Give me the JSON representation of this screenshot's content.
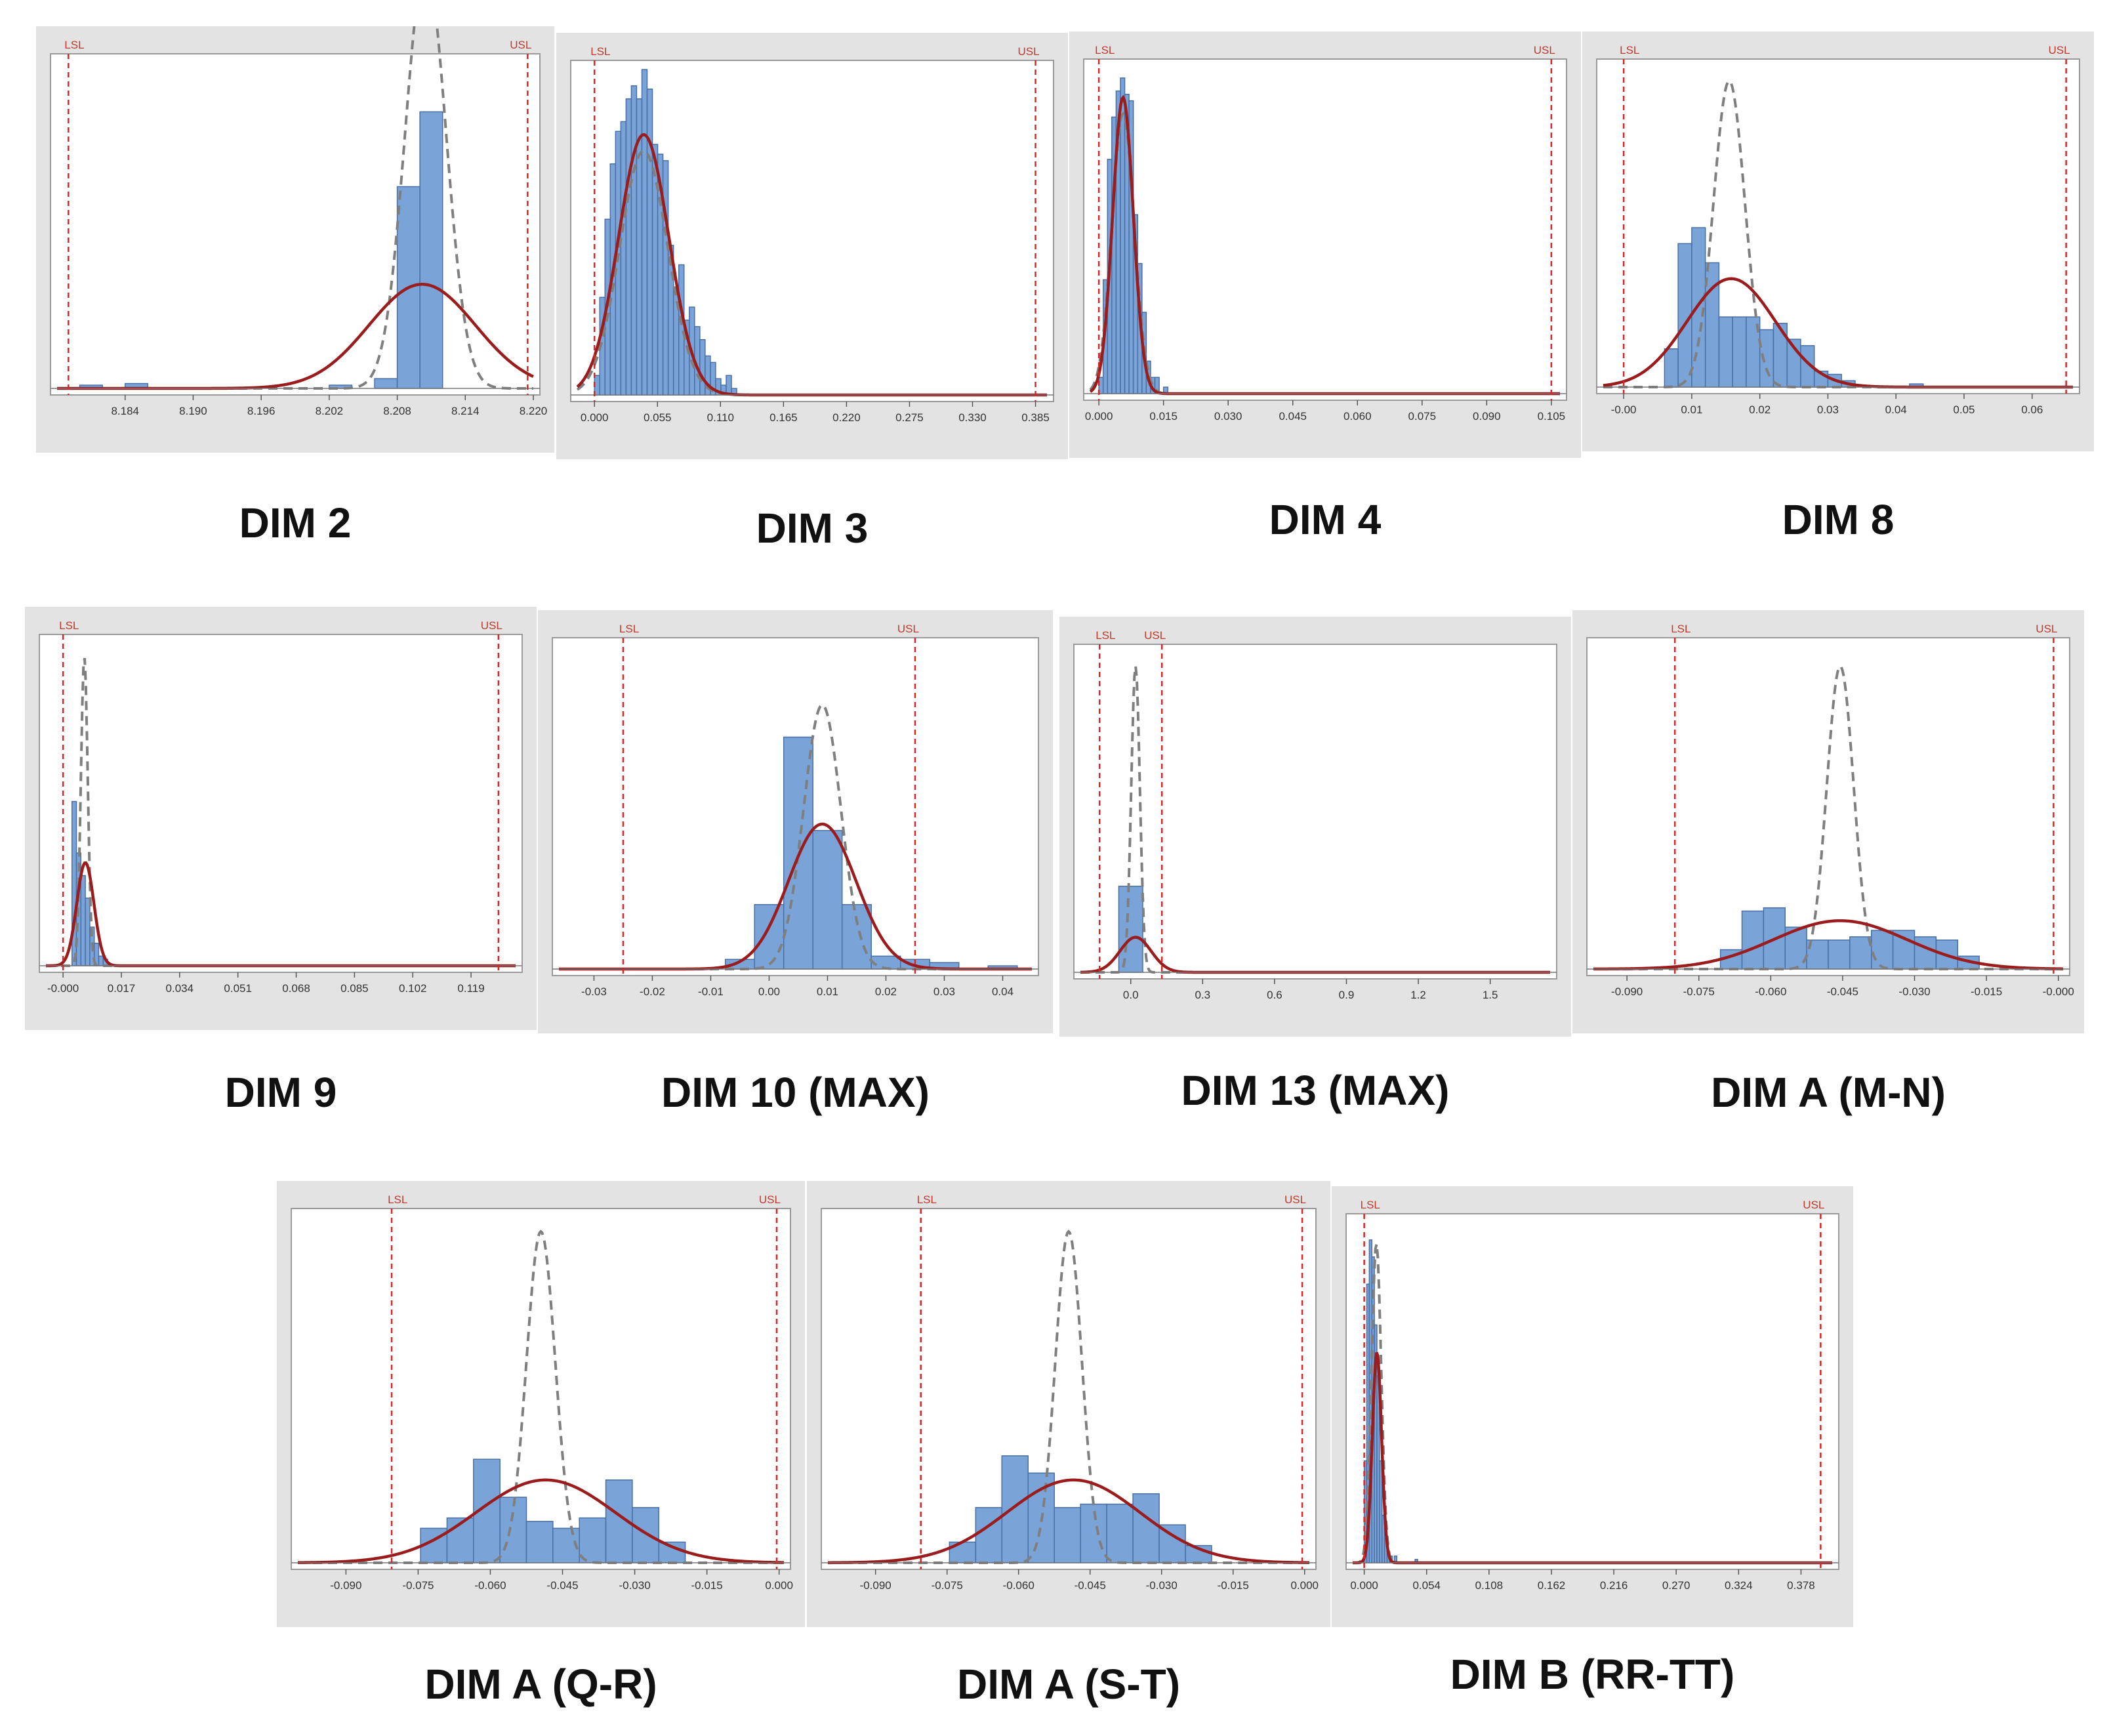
{
  "figure": {
    "colors": {
      "panel_background": "#e3e3e3",
      "plot_background": "#ffffff",
      "bar_fill": "#7aa3d8",
      "bar_stroke": "#4a6fa5",
      "within_curve": "#9b1c1c",
      "overall_curve": "#7f7f7f",
      "spec_line": "#d62728"
    }
  },
  "chart_data": [
    {
      "type": "histogram",
      "title": "DIM 2",
      "xlim": [
        8.178,
        8.22
      ],
      "xticks": [
        "8.184",
        "8.190",
        "8.196",
        "8.202",
        "8.208",
        "8.214",
        "8.220"
      ],
      "xtick_values": [
        8.184,
        8.19,
        8.196,
        8.202,
        8.208,
        8.214,
        8.22
      ],
      "lsl": 8.179,
      "usl": 8.2195,
      "lsl_label": "LSL",
      "usl_label": "USL",
      "bin_width": 0.002,
      "bins": [
        [
          8.18,
          0.01
        ],
        [
          8.184,
          0.015
        ],
        [
          8.202,
          0.01
        ],
        [
          8.206,
          0.03
        ],
        [
          8.208,
          0.62
        ],
        [
          8.21,
          0.85
        ]
      ],
      "within_fit": {
        "mean": 8.2105,
        "sd": 0.0018,
        "peak": 1.3
      },
      "overall_fit": {
        "mean": 8.2102,
        "sd": 0.0047,
        "peak": 0.32
      }
    },
    {
      "type": "histogram",
      "title": "DIM 3",
      "xlim": [
        -0.015,
        0.395
      ],
      "xticks": [
        "0.000",
        "0.055",
        "0.110",
        "0.165",
        "0.220",
        "0.275",
        "0.330",
        "0.385"
      ],
      "xtick_values": [
        0.0,
        0.055,
        0.11,
        0.165,
        0.22,
        0.275,
        0.33,
        0.385
      ],
      "lsl": 0.0,
      "usl": 0.385,
      "lsl_label": "LSL",
      "usl_label": "USL",
      "bin_width": 0.00458,
      "bins": [
        [
          0.0,
          0.06
        ],
        [
          0.0046,
          0.3
        ],
        [
          0.0092,
          0.54
        ],
        [
          0.0138,
          0.71
        ],
        [
          0.0184,
          0.81
        ],
        [
          0.023,
          0.84
        ],
        [
          0.0276,
          0.91
        ],
        [
          0.0322,
          0.95
        ],
        [
          0.0368,
          0.91
        ],
        [
          0.0414,
          1.0
        ],
        [
          0.046,
          0.94
        ],
        [
          0.0506,
          0.77
        ],
        [
          0.0552,
          0.74
        ],
        [
          0.0598,
          0.72
        ],
        [
          0.0644,
          0.46
        ],
        [
          0.069,
          0.33
        ],
        [
          0.0736,
          0.4
        ],
        [
          0.0782,
          0.23
        ],
        [
          0.0828,
          0.27
        ],
        [
          0.0874,
          0.21
        ],
        [
          0.092,
          0.17
        ],
        [
          0.0966,
          0.12
        ],
        [
          0.1012,
          0.1
        ],
        [
          0.1058,
          0.05
        ],
        [
          0.1104,
          0.03
        ],
        [
          0.115,
          0.06
        ],
        [
          0.1196,
          0.02
        ]
      ],
      "within_fit": {
        "mean": 0.043,
        "sd": 0.021,
        "peak": 0.75
      },
      "overall_fit": {
        "mean": 0.043,
        "sd": 0.022,
        "peak": 0.8
      }
    },
    {
      "type": "histogram",
      "title": "DIM 4",
      "xlim": [
        -0.002,
        0.107
      ],
      "xticks": [
        "0.000",
        "0.015",
        "0.030",
        "0.045",
        "0.060",
        "0.075",
        "0.090",
        "0.105"
      ],
      "xtick_values": [
        0.0,
        0.015,
        0.03,
        0.045,
        0.06,
        0.075,
        0.09,
        0.105
      ],
      "lsl": 0.0,
      "usl": 0.105,
      "lsl_label": "LSL",
      "usl_label": "USL",
      "bin_width": 0.001,
      "bins": [
        [
          0.0,
          0.05
        ],
        [
          0.001,
          0.35
        ],
        [
          0.002,
          0.72
        ],
        [
          0.003,
          0.85
        ],
        [
          0.004,
          0.93
        ],
        [
          0.005,
          0.97
        ],
        [
          0.006,
          0.92
        ],
        [
          0.007,
          0.9
        ],
        [
          0.008,
          0.55
        ],
        [
          0.009,
          0.4
        ],
        [
          0.01,
          0.25
        ],
        [
          0.011,
          0.1
        ],
        [
          0.012,
          0.05
        ],
        [
          0.013,
          0.05
        ],
        [
          0.015,
          0.02
        ]
      ],
      "within_fit": {
        "mean": 0.0056,
        "sd": 0.0026,
        "peak": 0.86
      },
      "overall_fit": {
        "mean": 0.0056,
        "sd": 0.0024,
        "peak": 0.91
      }
    },
    {
      "type": "histogram",
      "title": "DIM 8",
      "xlim": [
        -0.003,
        0.066
      ],
      "xticks": [
        "-0.00",
        "0.01",
        "0.02",
        "0.03",
        "0.04",
        "0.05",
        "0.06"
      ],
      "xtick_values": [
        0.0,
        0.01,
        0.02,
        0.03,
        0.04,
        0.05,
        0.06
      ],
      "lsl": 0.0,
      "usl": 0.065,
      "lsl_label": "LSL",
      "usl_label": "USL",
      "bin_width": 0.002,
      "bins": [
        [
          0.006,
          0.12
        ],
        [
          0.008,
          0.45
        ],
        [
          0.01,
          0.5
        ],
        [
          0.012,
          0.39
        ],
        [
          0.014,
          0.22
        ],
        [
          0.016,
          0.22
        ],
        [
          0.018,
          0.22
        ],
        [
          0.02,
          0.18
        ],
        [
          0.022,
          0.2
        ],
        [
          0.024,
          0.15
        ],
        [
          0.026,
          0.13
        ],
        [
          0.028,
          0.05
        ],
        [
          0.03,
          0.04
        ],
        [
          0.032,
          0.02
        ],
        [
          0.042,
          0.01
        ]
      ],
      "within_fit": {
        "mean": 0.0155,
        "sd": 0.0023,
        "peak": 0.96
      },
      "overall_fit": {
        "mean": 0.0158,
        "sd": 0.0065,
        "peak": 0.34
      }
    },
    {
      "type": "histogram",
      "title": "DIM 9",
      "xlim": [
        -0.005,
        0.132
      ],
      "xticks": [
        "-0.000",
        "0.017",
        "0.034",
        "0.051",
        "0.068",
        "0.085",
        "0.102",
        "0.119"
      ],
      "xtick_values": [
        0.0,
        0.017,
        0.034,
        0.051,
        0.068,
        0.085,
        0.102,
        0.119
      ],
      "lsl": 0.0,
      "usl": 0.127,
      "lsl_label": "LSL",
      "usl_label": "USL",
      "bin_width": 0.0013,
      "bins": [
        [
          0.0026,
          0.51
        ],
        [
          0.0039,
          0.35
        ],
        [
          0.0052,
          0.28
        ],
        [
          0.0065,
          0.21
        ],
        [
          0.0078,
          0.12
        ],
        [
          0.0091,
          0.07
        ],
        [
          0.0104,
          0.03
        ],
        [
          0.0117,
          0.02
        ]
      ],
      "within_fit": {
        "mean": 0.0062,
        "sd": 0.001,
        "peak": 0.96
      },
      "overall_fit": {
        "mean": 0.0065,
        "sd": 0.0025,
        "peak": 0.32
      }
    },
    {
      "type": "histogram",
      "title": "DIM 10 (MAX)",
      "xlim": [
        -0.036,
        0.045
      ],
      "xticks": [
        "-0.03",
        "-0.02",
        "-0.01",
        "0.00",
        "0.01",
        "0.02",
        "0.03",
        "0.04"
      ],
      "xtick_values": [
        -0.03,
        -0.02,
        -0.01,
        0.0,
        0.01,
        0.02,
        0.03,
        0.04
      ],
      "lsl": -0.025,
      "usl": 0.025,
      "lsl_label": "LSL",
      "usl_label": "USL",
      "bin_width": 0.005,
      "bins": [
        [
          -0.0075,
          0.03
        ],
        [
          -0.0025,
          0.2
        ],
        [
          0.0025,
          0.72
        ],
        [
          0.0075,
          0.43
        ],
        [
          0.0125,
          0.2
        ],
        [
          0.0175,
          0.04
        ],
        [
          0.0225,
          0.03
        ],
        [
          0.0275,
          0.02
        ],
        [
          0.0375,
          0.01
        ]
      ],
      "within_fit": {
        "mean": 0.0091,
        "sd": 0.0032,
        "peak": 0.82
      },
      "overall_fit": {
        "mean": 0.0091,
        "sd": 0.0058,
        "peak": 0.45
      }
    },
    {
      "type": "histogram",
      "title": "DIM 13 (MAX)",
      "xlim": [
        -0.21,
        1.75
      ],
      "xticks": [
        "0.0",
        "0.3",
        "0.6",
        "0.9",
        "1.2",
        "1.5"
      ],
      "xtick_values": [
        0.0,
        0.3,
        0.6,
        0.9,
        1.2,
        1.5
      ],
      "lsl": -0.13,
      "usl": 0.13,
      "lsl_label": "LSL",
      "usl_label": "USL",
      "bin_width": 0.1,
      "bins": [
        [
          -0.05,
          0.27
        ]
      ],
      "within_fit": {
        "mean": 0.02,
        "sd": 0.018,
        "peak": 0.96
      },
      "overall_fit": {
        "mean": 0.02,
        "sd": 0.065,
        "peak": 0.11
      }
    },
    {
      "type": "histogram",
      "title": "DIM A (M-N)",
      "xlim": [
        -0.097,
        0.001
      ],
      "xticks": [
        "-0.090",
        "-0.075",
        "-0.060",
        "-0.045",
        "-0.030",
        "-0.015",
        "-0.000"
      ],
      "xtick_values": [
        -0.09,
        -0.075,
        -0.06,
        -0.045,
        -0.03,
        -0.015,
        0.0
      ],
      "lsl": -0.08,
      "usl": -0.001,
      "lsl_label": "LSL",
      "usl_label": "USL",
      "bin_width": 0.0045,
      "bins": [
        [
          -0.0705,
          0.06
        ],
        [
          -0.066,
          0.18
        ],
        [
          -0.0615,
          0.19
        ],
        [
          -0.057,
          0.13
        ],
        [
          -0.0525,
          0.09
        ],
        [
          -0.048,
          0.09
        ],
        [
          -0.0435,
          0.1
        ],
        [
          -0.039,
          0.12
        ],
        [
          -0.0345,
          0.12
        ],
        [
          -0.03,
          0.1
        ],
        [
          -0.0255,
          0.09
        ],
        [
          -0.021,
          0.04
        ]
      ],
      "within_fit": {
        "mean": -0.0455,
        "sd": 0.0028,
        "peak": 0.94
      },
      "overall_fit": {
        "mean": -0.0455,
        "sd": 0.014,
        "peak": 0.15
      }
    },
    {
      "type": "histogram",
      "title": "DIM A (Q-R)",
      "xlim": [
        -0.1,
        0.001
      ],
      "xticks": [
        "-0.090",
        "-0.075",
        "-0.060",
        "-0.045",
        "-0.030",
        "-0.015",
        "0.000"
      ],
      "xtick_values": [
        -0.09,
        -0.075,
        -0.06,
        -0.045,
        -0.03,
        -0.015,
        0.0
      ],
      "lsl": -0.0805,
      "usl": -0.0005,
      "lsl_label": "LSL",
      "usl_label": "USL",
      "bin_width": 0.0055,
      "bins": [
        [
          -0.0745,
          0.1
        ],
        [
          -0.069,
          0.13
        ],
        [
          -0.0635,
          0.3
        ],
        [
          -0.058,
          0.19
        ],
        [
          -0.0525,
          0.12
        ],
        [
          -0.047,
          0.1
        ],
        [
          -0.0415,
          0.13
        ],
        [
          -0.036,
          0.24
        ],
        [
          -0.0305,
          0.16
        ],
        [
          -0.025,
          0.06
        ]
      ],
      "within_fit": {
        "mean": -0.0495,
        "sd": 0.003,
        "peak": 0.96
      },
      "overall_fit": {
        "mean": -0.0485,
        "sd": 0.0145,
        "peak": 0.24
      }
    },
    {
      "type": "histogram",
      "title": "DIM A (S-T)",
      "xlim": [
        -0.1,
        0.001
      ],
      "xticks": [
        "-0.090",
        "-0.075",
        "-0.060",
        "-0.045",
        "-0.030",
        "-0.015",
        "0.000"
      ],
      "xtick_values": [
        -0.09,
        -0.075,
        -0.06,
        -0.045,
        -0.03,
        -0.015,
        0.0
      ],
      "lsl": -0.0805,
      "usl": -0.0005,
      "lsl_label": "LSL",
      "usl_label": "USL",
      "bin_width": 0.0055,
      "bins": [
        [
          -0.0745,
          0.06
        ],
        [
          -0.069,
          0.16
        ],
        [
          -0.0635,
          0.31
        ],
        [
          -0.058,
          0.26
        ],
        [
          -0.0525,
          0.16
        ],
        [
          -0.047,
          0.17
        ],
        [
          -0.0415,
          0.17
        ],
        [
          -0.036,
          0.2
        ],
        [
          -0.0305,
          0.11
        ],
        [
          -0.025,
          0.05
        ]
      ],
      "within_fit": {
        "mean": -0.0495,
        "sd": 0.0028,
        "peak": 0.96
      },
      "overall_fit": {
        "mean": -0.0485,
        "sd": 0.014,
        "peak": 0.24
      }
    },
    {
      "type": "histogram",
      "title": "DIM B (RR-TT)",
      "xlim": [
        -0.01,
        0.405
      ],
      "xticks": [
        "0.000",
        "0.054",
        "0.108",
        "0.162",
        "0.216",
        "0.270",
        "0.324",
        "0.378"
      ],
      "xtick_values": [
        0.0,
        0.054,
        0.108,
        0.162,
        0.216,
        0.27,
        0.324,
        0.378
      ],
      "lsl": 0.0,
      "usl": 0.395,
      "lsl_label": "LSL",
      "usl_label": "USL",
      "bin_width": 0.0022,
      "bins": [
        [
          0.0,
          0.3
        ],
        [
          0.0022,
          0.82
        ],
        [
          0.0044,
          0.95
        ],
        [
          0.0066,
          0.9
        ],
        [
          0.0088,
          0.7
        ],
        [
          0.011,
          0.55
        ],
        [
          0.0132,
          0.3
        ],
        [
          0.0154,
          0.14
        ],
        [
          0.0176,
          0.07
        ],
        [
          0.0198,
          0.03
        ],
        [
          0.022,
          0.02
        ],
        [
          0.026,
          0.02
        ],
        [
          0.044,
          0.01
        ]
      ],
      "within_fit": {
        "mean": 0.0105,
        "sd": 0.0042,
        "peak": 0.94
      },
      "overall_fit": {
        "mean": 0.011,
        "sd": 0.004,
        "peak": 0.62
      }
    }
  ]
}
